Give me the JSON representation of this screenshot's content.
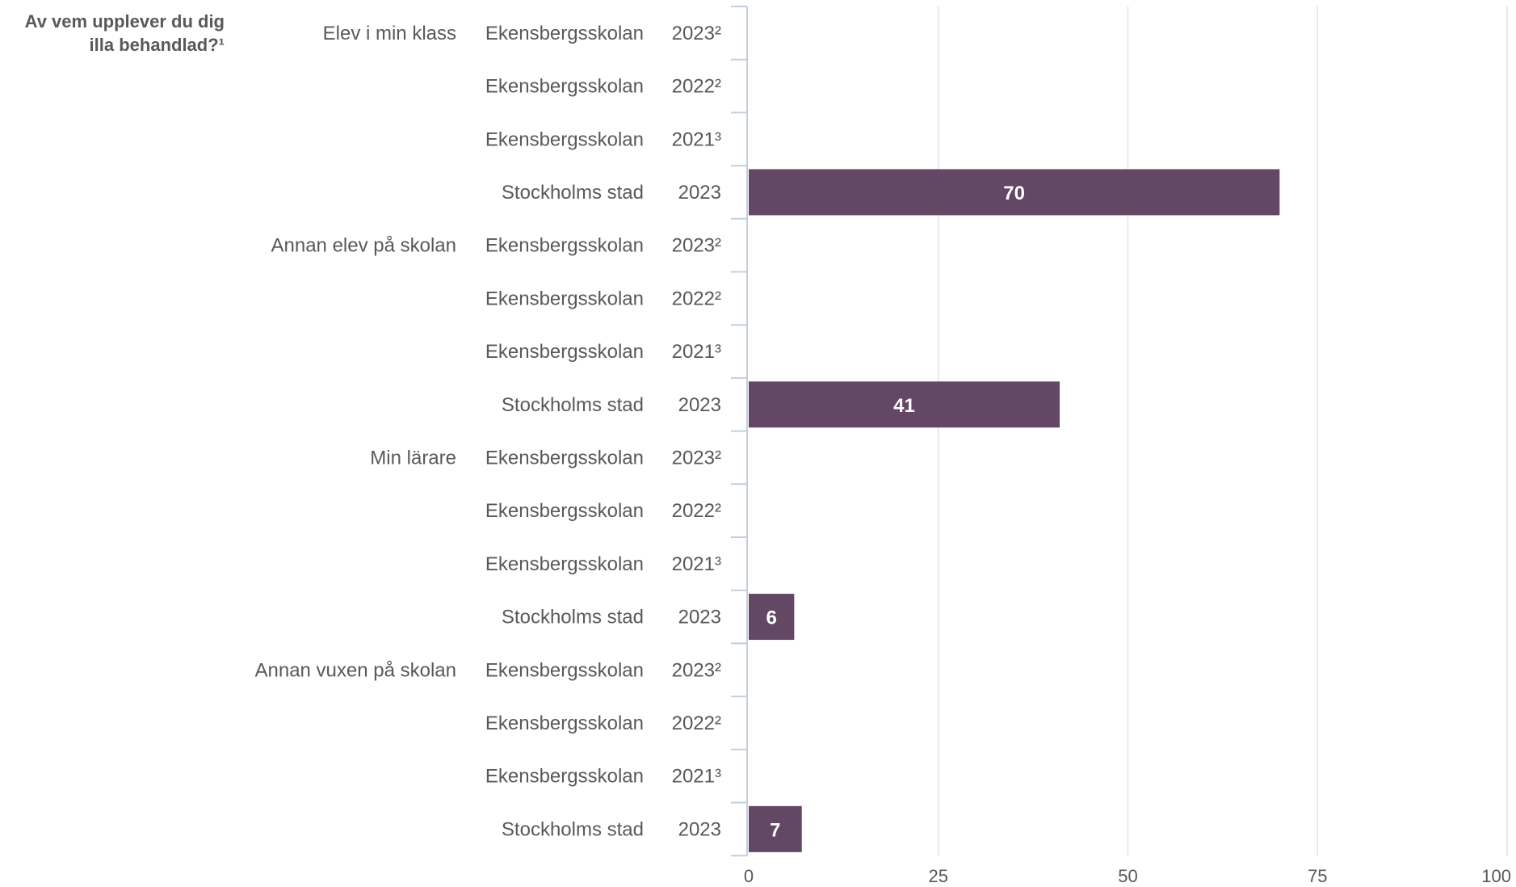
{
  "question_label": "Av vem upplever du dig illa behandlad?¹",
  "colors": {
    "bar": "#634764",
    "grid": "#dde1ea",
    "axis": "#c5cde0",
    "label": "#595959",
    "bar_label": "#ffffff"
  },
  "chart_data": {
    "type": "bar",
    "orientation": "horizontal",
    "title": "",
    "xlabel": "",
    "ylabel": "",
    "xlim": [
      0,
      100
    ],
    "x_ticks": [
      0,
      25,
      50,
      75,
      100
    ],
    "grid": true,
    "groups": [
      {
        "name": "Elev i min klass",
        "rows": [
          {
            "unit": "Ekensbergsskolan",
            "year": "2023²",
            "value": null
          },
          {
            "unit": "Ekensbergsskolan",
            "year": "2022²",
            "value": null
          },
          {
            "unit": "Ekensbergsskolan",
            "year": "2021³",
            "value": null
          },
          {
            "unit": "Stockholms stad",
            "year": "2023",
            "value": 70
          }
        ]
      },
      {
        "name": "Annan elev på skolan",
        "rows": [
          {
            "unit": "Ekensbergsskolan",
            "year": "2023²",
            "value": null
          },
          {
            "unit": "Ekensbergsskolan",
            "year": "2022²",
            "value": null
          },
          {
            "unit": "Ekensbergsskolan",
            "year": "2021³",
            "value": null
          },
          {
            "unit": "Stockholms stad",
            "year": "2023",
            "value": 41
          }
        ]
      },
      {
        "name": "Min lärare",
        "rows": [
          {
            "unit": "Ekensbergsskolan",
            "year": "2023²",
            "value": null
          },
          {
            "unit": "Ekensbergsskolan",
            "year": "2022²",
            "value": null
          },
          {
            "unit": "Ekensbergsskolan",
            "year": "2021³",
            "value": null
          },
          {
            "unit": "Stockholms stad",
            "year": "2023",
            "value": 6
          }
        ]
      },
      {
        "name": "Annan vuxen på skolan",
        "rows": [
          {
            "unit": "Ekensbergsskolan",
            "year": "2023²",
            "value": null
          },
          {
            "unit": "Ekensbergsskolan",
            "year": "2022²",
            "value": null
          },
          {
            "unit": "Ekensbergsskolan",
            "year": "2021³",
            "value": null
          },
          {
            "unit": "Stockholms stad",
            "year": "2023",
            "value": 7
          }
        ]
      }
    ]
  }
}
